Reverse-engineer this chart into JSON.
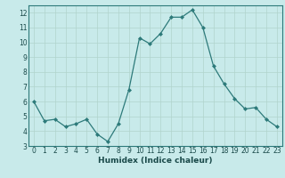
{
  "x": [
    0,
    1,
    2,
    3,
    4,
    5,
    6,
    7,
    8,
    9,
    10,
    11,
    12,
    13,
    14,
    15,
    16,
    17,
    18,
    19,
    20,
    21,
    22,
    23
  ],
  "y": [
    6.0,
    4.7,
    4.8,
    4.3,
    4.5,
    4.8,
    3.8,
    3.3,
    4.5,
    6.8,
    10.3,
    9.9,
    10.6,
    11.7,
    11.7,
    12.2,
    11.0,
    8.4,
    7.2,
    6.2,
    5.5,
    5.6,
    4.8,
    4.3
  ],
  "xlabel": "Humidex (Indice chaleur)",
  "ylim": [
    3,
    12.5
  ],
  "xlim": [
    -0.5,
    23.5
  ],
  "yticks": [
    3,
    4,
    5,
    6,
    7,
    8,
    9,
    10,
    11,
    12
  ],
  "xticks": [
    0,
    1,
    2,
    3,
    4,
    5,
    6,
    7,
    8,
    9,
    10,
    11,
    12,
    13,
    14,
    15,
    16,
    17,
    18,
    19,
    20,
    21,
    22,
    23
  ],
  "line_color": "#2d7a7a",
  "marker": "D",
  "marker_size": 2.0,
  "bg_color": "#c8eaea",
  "grid_color": "#b0d4cc",
  "xlabel_color": "#1a4a4a",
  "tick_fontsize": 5.5,
  "xlabel_fontsize": 6.5
}
